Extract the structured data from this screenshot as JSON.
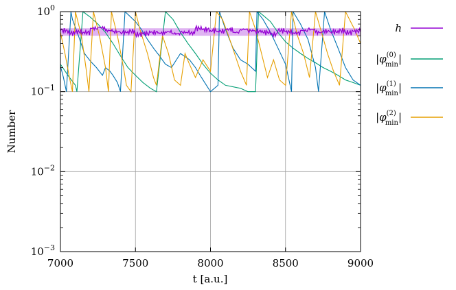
{
  "chart_data": {
    "type": "line",
    "title": "",
    "xlabel": "t [a.u.]",
    "ylabel": "Number",
    "xlim": [
      7000,
      9000
    ],
    "ylim": [
      0.001,
      1
    ],
    "yscale": "log",
    "grid": true,
    "legend_position": "right-outside-top",
    "x_ticks": [
      "7000",
      "7500",
      "8000",
      "8500",
      "9000"
    ],
    "y_ticks": [
      {
        "base": "10",
        "exp": "0"
      },
      {
        "base": "10",
        "exp": "−1"
      },
      {
        "base": "10",
        "exp": "−2"
      },
      {
        "base": "10",
        "exp": "−3"
      }
    ],
    "band": {
      "series": "h",
      "lower": 0.5,
      "upper": 0.62,
      "color": "#d9a6f0"
    },
    "series": [
      {
        "name": "h",
        "label": "h",
        "color": "#9400d3",
        "x": [
          7000,
          7050,
          7100,
          7150,
          7200,
          7250,
          7300,
          7350,
          7400,
          7450,
          7500,
          7550,
          7600,
          7650,
          7700,
          7750,
          7800,
          7850,
          7900,
          7950,
          8000,
          8050,
          8100,
          8150,
          8200,
          8250,
          8300,
          8350,
          8400,
          8450,
          8500,
          8550,
          8600,
          8650,
          8700,
          8750,
          8800,
          8850,
          8900,
          8950,
          9000
        ],
        "values": [
          0.58,
          0.54,
          0.56,
          0.55,
          0.62,
          0.63,
          0.58,
          0.56,
          0.55,
          0.57,
          0.52,
          0.53,
          0.55,
          0.54,
          0.56,
          0.53,
          0.55,
          0.54,
          0.62,
          0.6,
          0.58,
          0.57,
          0.6,
          0.55,
          0.6,
          0.58,
          0.57,
          0.55,
          0.52,
          0.58,
          0.56,
          0.54,
          0.58,
          0.6,
          0.55,
          0.57,
          0.56,
          0.58,
          0.55,
          0.57,
          0.56
        ]
      },
      {
        "name": "phi0",
        "label": "|φ_min^(0)|",
        "color": "#009e73",
        "x": [
          7000,
          7050,
          7100,
          7110,
          7150,
          7200,
          7250,
          7300,
          7350,
          7400,
          7450,
          7500,
          7550,
          7600,
          7640,
          7700,
          7750,
          7800,
          7850,
          7900,
          7950,
          8000,
          8050,
          8100,
          8200,
          8250,
          8300,
          8320,
          8350,
          8400,
          8450,
          8500,
          8550,
          8600,
          8650,
          8700,
          8750,
          8800,
          8850,
          8900,
          8950,
          9000
        ],
        "values": [
          0.22,
          0.16,
          0.12,
          0.1,
          1.0,
          0.85,
          0.7,
          0.55,
          0.4,
          0.28,
          0.2,
          0.16,
          0.13,
          0.11,
          0.1,
          1.0,
          0.8,
          0.55,
          0.4,
          0.3,
          0.22,
          0.17,
          0.14,
          0.12,
          0.11,
          0.1,
          0.1,
          1.0,
          0.9,
          0.75,
          0.55,
          0.42,
          0.35,
          0.3,
          0.26,
          0.23,
          0.2,
          0.18,
          0.16,
          0.14,
          0.13,
          0.12
        ]
      },
      {
        "name": "phi1",
        "label": "|φ_min^(1)|",
        "color": "#0072b2",
        "x": [
          7000,
          7020,
          7040,
          7070,
          7080,
          7120,
          7160,
          7200,
          7240,
          7280,
          7300,
          7330,
          7350,
          7380,
          7400,
          7430,
          7470,
          7500,
          7540,
          7580,
          7620,
          7660,
          7700,
          7740,
          7800,
          7860,
          7900,
          7940,
          8000,
          8050,
          8060,
          8100,
          8150,
          8200,
          8250,
          8300,
          8310,
          8350,
          8400,
          8450,
          8500,
          8540,
          8550,
          8600,
          8650,
          8700,
          8720,
          8760,
          8800,
          8850,
          8900,
          8950,
          9000
        ],
        "values": [
          0.21,
          0.15,
          0.1,
          1.0,
          0.8,
          0.5,
          0.3,
          0.24,
          0.2,
          0.16,
          0.2,
          0.18,
          0.16,
          0.13,
          0.1,
          1.0,
          0.85,
          0.75,
          0.6,
          0.45,
          0.35,
          0.28,
          0.22,
          0.2,
          0.3,
          0.25,
          0.2,
          0.15,
          0.1,
          0.12,
          1.0,
          0.6,
          0.35,
          0.25,
          0.22,
          0.18,
          1.0,
          0.8,
          0.55,
          0.35,
          0.22,
          0.1,
          1.0,
          0.7,
          0.45,
          0.2,
          0.1,
          1.0,
          0.6,
          0.35,
          0.2,
          0.14,
          0.12
        ]
      },
      {
        "name": "phi2",
        "label": "|φ_min^(2)|",
        "color": "#e69f00",
        "x": [
          7000,
          7030,
          7060,
          7080,
          7100,
          7140,
          7170,
          7190,
          7220,
          7260,
          7300,
          7320,
          7340,
          7380,
          7420,
          7440,
          7470,
          7500,
          7530,
          7580,
          7620,
          7640,
          7680,
          7720,
          7760,
          7800,
          7830,
          7860,
          7900,
          7950,
          8000,
          8040,
          8080,
          8120,
          8160,
          8200,
          8240,
          8260,
          8300,
          8340,
          8380,
          8420,
          8460,
          8500,
          8540,
          8580,
          8620,
          8660,
          8700,
          8740,
          8780,
          8820,
          8860,
          8900,
          8960,
          9000
        ],
        "values": [
          0.55,
          0.3,
          0.15,
          0.1,
          1.0,
          0.5,
          0.2,
          0.1,
          1.0,
          0.5,
          0.2,
          0.1,
          1.0,
          0.5,
          0.2,
          0.12,
          0.1,
          1.0,
          0.6,
          0.3,
          0.15,
          0.12,
          0.5,
          0.3,
          0.14,
          0.12,
          0.3,
          0.22,
          0.15,
          0.25,
          0.18,
          1.0,
          0.8,
          0.5,
          0.3,
          0.18,
          0.12,
          1.0,
          0.6,
          0.3,
          0.15,
          0.25,
          0.14,
          0.12,
          1.0,
          0.5,
          0.3,
          0.15,
          1.0,
          0.55,
          0.3,
          0.18,
          0.12,
          1.0,
          0.6,
          0.4
        ]
      }
    ]
  }
}
